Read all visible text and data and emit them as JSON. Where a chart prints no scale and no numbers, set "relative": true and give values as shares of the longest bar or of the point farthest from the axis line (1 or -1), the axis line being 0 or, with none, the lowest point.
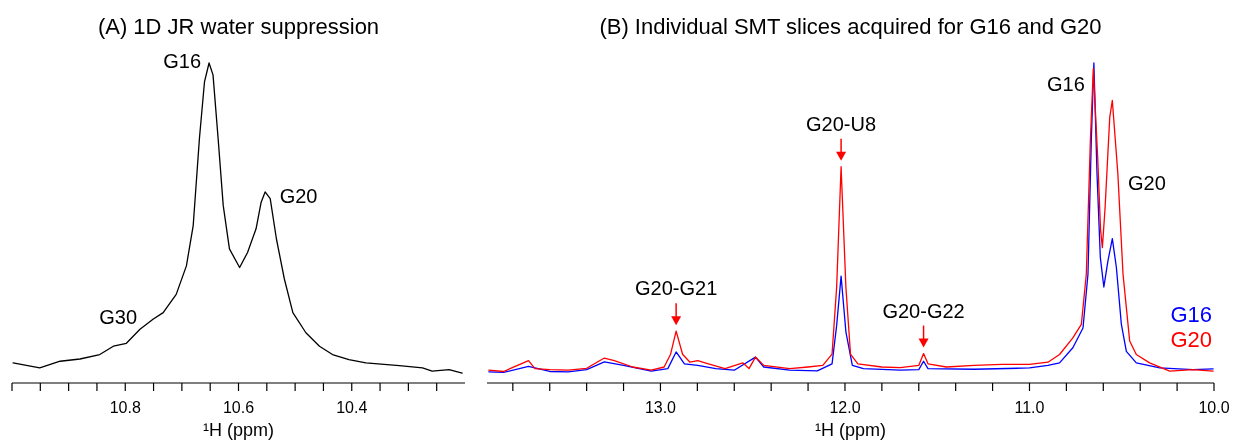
{
  "chart_data": [
    {
      "type": "line",
      "title": "(A) 1D JR water suppression",
      "xlabel": "¹H (ppm)",
      "relative": true,
      "xlim": [
        11.0,
        10.2
      ],
      "xticks": [
        {
          "value": 11.0,
          "label": null
        },
        {
          "value": 10.95,
          "label": null
        },
        {
          "value": 10.9,
          "label": null
        },
        {
          "value": 10.85,
          "label": null
        },
        10.8,
        {
          "value": 10.75,
          "label": null
        },
        {
          "value": 10.7,
          "label": null
        },
        {
          "value": 10.65,
          "label": null
        },
        10.6,
        {
          "value": 10.55,
          "label": null
        },
        {
          "value": 10.5,
          "label": null
        },
        {
          "value": 10.45,
          "label": null
        },
        10.4,
        {
          "value": 10.35,
          "label": null
        },
        {
          "value": 10.3,
          "label": null
        },
        {
          "value": 10.25,
          "label": null
        }
      ],
      "series": [
        {
          "color": "#000000",
          "x": [
            10.998,
            10.951,
            10.915,
            10.88,
            10.845,
            10.821,
            10.798,
            10.774,
            10.751,
            10.733,
            10.71,
            10.692,
            10.68,
            10.669,
            10.66,
            10.652,
            10.645,
            10.636,
            10.627,
            10.616,
            10.598,
            10.584,
            10.569,
            10.56,
            10.553,
            10.544,
            10.533,
            10.519,
            10.504,
            10.481,
            10.457,
            10.434,
            10.405,
            10.375,
            10.316,
            10.275,
            10.258,
            10.228,
            10.205
          ],
          "values": [
            0.063,
            0.047,
            0.068,
            0.075,
            0.089,
            0.115,
            0.124,
            0.168,
            0.199,
            0.22,
            0.277,
            0.366,
            0.492,
            0.764,
            0.942,
            1.0,
            0.963,
            0.764,
            0.555,
            0.419,
            0.361,
            0.408,
            0.482,
            0.565,
            0.597,
            0.576,
            0.45,
            0.325,
            0.22,
            0.157,
            0.115,
            0.089,
            0.073,
            0.063,
            0.054,
            0.047,
            0.037,
            0.042,
            0.031
          ]
        }
      ],
      "annotations": [
        {
          "text": "G16",
          "x": 10.652,
          "y": 1.0
        },
        {
          "text": "G20",
          "x": 10.545,
          "y": 0.58
        },
        {
          "text": "G30",
          "x": 10.765,
          "y": 0.2
        }
      ]
    },
    {
      "type": "line",
      "title": "(B) Individual SMT slices acquired for G16 and G20",
      "xlabel": "¹H (ppm)",
      "relative": true,
      "xlim": [
        13.94,
        10.0
      ],
      "legend": "bottom right",
      "xticks": [
        {
          "value": 13.8,
          "label": null
        },
        {
          "value": 13.6,
          "label": null
        },
        {
          "value": 13.4,
          "label": null
        },
        {
          "value": 13.2,
          "label": null
        },
        {
          "value": 13.0,
          "label": "13.0"
        },
        {
          "value": 12.8,
          "label": null
        },
        {
          "value": 12.6,
          "label": null
        },
        {
          "value": 12.4,
          "label": null
        },
        {
          "value": 12.2,
          "label": null
        },
        {
          "value": 12.0,
          "label": "12.0"
        },
        {
          "value": 11.8,
          "label": null
        },
        {
          "value": 11.6,
          "label": null
        },
        {
          "value": 11.4,
          "label": null
        },
        {
          "value": 11.2,
          "label": null
        },
        {
          "value": 11.0,
          "label": "11.0"
        },
        {
          "value": 10.8,
          "label": null
        },
        {
          "value": 10.6,
          "label": null
        },
        {
          "value": 10.4,
          "label": null
        },
        {
          "value": 10.2,
          "label": null
        },
        {
          "value": 10.0,
          "label": "10.0"
        }
      ],
      "series": [
        {
          "name": "G16",
          "color": "#0000ff",
          "x": [
            13.93,
            13.85,
            13.715,
            13.6,
            13.5,
            13.4,
            13.304,
            13.2,
            13.05,
            12.96,
            12.915,
            12.87,
            12.798,
            12.7,
            12.6,
            12.485,
            12.44,
            12.3,
            12.15,
            12.07,
            12.045,
            12.021,
            11.995,
            11.96,
            11.9,
            11.7,
            11.6,
            11.574,
            11.55,
            11.3,
            11.0,
            10.9,
            10.837,
            10.765,
            10.71,
            10.683,
            10.665,
            10.651,
            10.634,
            10.616,
            10.597,
            10.575,
            10.551,
            10.529,
            10.502,
            10.475,
            10.421,
            10.294,
            10.114,
            10.005
          ],
          "values": [
            0.035,
            0.033,
            0.052,
            0.036,
            0.035,
            0.042,
            0.066,
            0.055,
            0.037,
            0.045,
            0.097,
            0.06,
            0.055,
            0.045,
            0.04,
            0.081,
            0.05,
            0.04,
            0.038,
            0.06,
            0.18,
            0.334,
            0.16,
            0.055,
            0.045,
            0.04,
            0.042,
            0.068,
            0.045,
            0.043,
            0.047,
            0.055,
            0.063,
            0.11,
            0.172,
            0.34,
            0.758,
            1.0,
            0.653,
            0.392,
            0.3,
            0.381,
            0.451,
            0.361,
            0.183,
            0.099,
            0.063,
            0.047,
            0.042,
            0.044
          ]
        },
        {
          "name": "G20",
          "color": "#ff0000",
          "x": [
            13.93,
            13.85,
            13.715,
            13.68,
            13.6,
            13.5,
            13.4,
            13.304,
            13.25,
            13.15,
            13.05,
            12.98,
            12.945,
            12.915,
            12.88,
            12.84,
            12.798,
            12.74,
            12.65,
            12.554,
            12.52,
            12.485,
            12.44,
            12.3,
            12.2,
            12.12,
            12.07,
            12.045,
            12.021,
            11.995,
            11.97,
            11.93,
            11.8,
            11.7,
            11.6,
            11.574,
            11.55,
            11.45,
            11.3,
            11.15,
            11.0,
            10.9,
            10.837,
            10.765,
            10.719,
            10.692,
            10.67,
            10.654,
            10.63,
            10.615,
            10.605,
            10.59,
            10.565,
            10.551,
            10.521,
            10.493,
            10.457,
            10.421,
            10.349,
            10.24,
            10.114,
            10.005
          ],
          "values": [
            0.04,
            0.036,
            0.07,
            0.045,
            0.042,
            0.04,
            0.046,
            0.078,
            0.07,
            0.05,
            0.04,
            0.05,
            0.09,
            0.162,
            0.09,
            0.065,
            0.07,
            0.06,
            0.045,
            0.063,
            0.045,
            0.081,
            0.055,
            0.045,
            0.05,
            0.055,
            0.09,
            0.3,
            0.676,
            0.3,
            0.09,
            0.06,
            0.05,
            0.048,
            0.055,
            0.092,
            0.06,
            0.05,
            0.055,
            0.058,
            0.058,
            0.065,
            0.089,
            0.141,
            0.183,
            0.34,
            0.758,
            0.982,
            0.7,
            0.48,
            0.423,
            0.55,
            0.83,
            0.883,
            0.653,
            0.34,
            0.131,
            0.089,
            0.063,
            0.037,
            0.042,
            0.037
          ]
        }
      ],
      "annotations": [
        {
          "text": "G20-G21",
          "x": 12.915,
          "y": 0.162
        },
        {
          "text": "G20-U8",
          "x": 12.021,
          "y": 0.676
        },
        {
          "text": "G20-G22",
          "x": 11.574,
          "y": 0.092
        },
        {
          "text": "G16",
          "x": 10.657,
          "y": 0.93
        },
        {
          "text": "G20",
          "x": 10.52,
          "y": 0.62
        }
      ]
    }
  ]
}
